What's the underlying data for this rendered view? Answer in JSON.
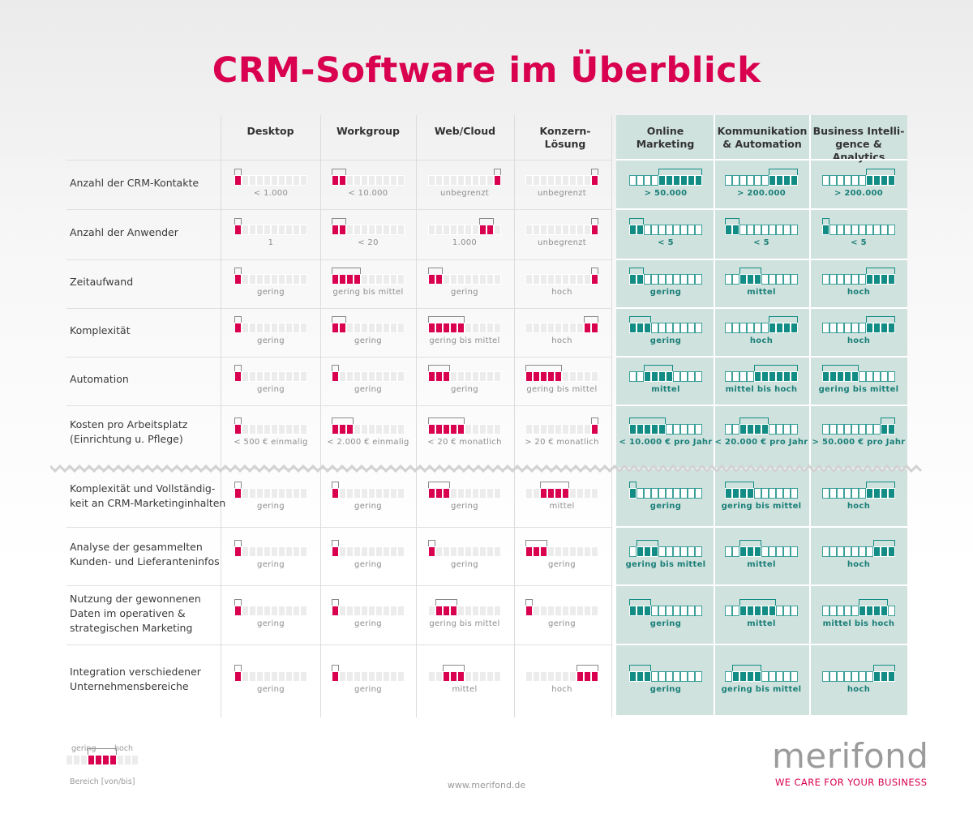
{
  "title": "CRM-Software im Überblick",
  "colors": {
    "pink": "#d8004f",
    "teal": "#128c84"
  },
  "columns": [
    {
      "label": [
        "Desktop"
      ],
      "group": "pink"
    },
    {
      "label": [
        "Workgroup"
      ],
      "group": "pink"
    },
    {
      "label": [
        "Web/Cloud"
      ],
      "group": "pink"
    },
    {
      "label": [
        "Konzern-",
        "Lösung"
      ],
      "group": "pink"
    },
    {
      "label": [
        "Online",
        "Marketing"
      ],
      "group": "teal"
    },
    {
      "label": [
        "Kommunikation",
        "& Automation"
      ],
      "group": "teal"
    },
    {
      "label": [
        "Business Intelli-",
        "gence & Analytics"
      ],
      "group": "teal"
    }
  ],
  "chart_data": {
    "type": "table",
    "scale_segments": 10,
    "rows": [
      {
        "label": [
          "Anzahl der CRM-Kontakte"
        ],
        "cells": [
          {
            "range": [
              1,
              1
            ],
            "caption": "< 1.000"
          },
          {
            "range": [
              1,
              2
            ],
            "caption": "< 10.000"
          },
          {
            "range": [
              10,
              10
            ],
            "caption": "unbegrenzt"
          },
          {
            "range": [
              10,
              10
            ],
            "caption": "unbegrenzt"
          },
          {
            "range": [
              5,
              10
            ],
            "caption": "> 50.000"
          },
          {
            "range": [
              7,
              10
            ],
            "caption": "> 200.000"
          },
          {
            "range": [
              7,
              10
            ],
            "caption": "> 200.000"
          }
        ]
      },
      {
        "label": [
          "Anzahl der Anwender"
        ],
        "cells": [
          {
            "range": [
              1,
              1
            ],
            "caption": "1"
          },
          {
            "range": [
              1,
              2
            ],
            "caption": "< 20"
          },
          {
            "range": [
              8,
              9
            ],
            "caption": "1.000"
          },
          {
            "range": [
              10,
              10
            ],
            "caption": "unbegrenzt"
          },
          {
            "range": [
              1,
              2
            ],
            "caption": "< 5"
          },
          {
            "range": [
              1,
              2
            ],
            "caption": "< 5"
          },
          {
            "range": [
              1,
              1
            ],
            "caption": "< 5"
          }
        ]
      },
      {
        "label": [
          "Zeitaufwand"
        ],
        "cells": [
          {
            "range": [
              1,
              1
            ],
            "caption": "gering"
          },
          {
            "range": [
              1,
              4
            ],
            "caption": "gering bis mittel"
          },
          {
            "range": [
              1,
              2
            ],
            "caption": "gering"
          },
          {
            "range": [
              10,
              10
            ],
            "caption": "hoch"
          },
          {
            "range": [
              1,
              2
            ],
            "caption": "gering"
          },
          {
            "range": [
              3,
              5
            ],
            "caption": "mittel"
          },
          {
            "range": [
              7,
              10
            ],
            "caption": "hoch"
          }
        ]
      },
      {
        "label": [
          "Komplexität"
        ],
        "cells": [
          {
            "range": [
              1,
              1
            ],
            "caption": "gering"
          },
          {
            "range": [
              1,
              2
            ],
            "caption": "gering"
          },
          {
            "range": [
              1,
              5
            ],
            "caption": "gering bis mittel"
          },
          {
            "range": [
              9,
              10
            ],
            "caption": "hoch"
          },
          {
            "range": [
              1,
              3
            ],
            "caption": "gering"
          },
          {
            "range": [
              7,
              10
            ],
            "caption": "hoch"
          },
          {
            "range": [
              7,
              10
            ],
            "caption": "hoch"
          }
        ]
      },
      {
        "label": [
          "Automation"
        ],
        "cells": [
          {
            "range": [
              1,
              1
            ],
            "caption": "gering"
          },
          {
            "range": [
              1,
              1
            ],
            "caption": "gering"
          },
          {
            "range": [
              1,
              3
            ],
            "caption": "gering"
          },
          {
            "range": [
              1,
              5
            ],
            "caption": "gering bis mittel"
          },
          {
            "range": [
              3,
              6
            ],
            "caption": "mittel"
          },
          {
            "range": [
              5,
              10
            ],
            "caption": "mittel bis hoch"
          },
          {
            "range": [
              1,
              5
            ],
            "caption": "gering bis mittel"
          }
        ]
      },
      {
        "label": [
          "Kosten pro Arbeitsplatz",
          "(Einrichtung u. Pflege)"
        ],
        "cells": [
          {
            "range": [
              1,
              1
            ],
            "caption": "< 500 € einmalig"
          },
          {
            "range": [
              1,
              3
            ],
            "caption": "< 2.000 € einmalig"
          },
          {
            "range": [
              1,
              5
            ],
            "caption": "< 20 € monatlich"
          },
          {
            "range": [
              10,
              10
            ],
            "caption": "> 20 € monatlich"
          },
          {
            "range": [
              1,
              5
            ],
            "caption": "< 10.000 € pro Jahr"
          },
          {
            "range": [
              3,
              6
            ],
            "caption": "< 20.000 € pro Jahr"
          },
          {
            "range": [
              9,
              10
            ],
            "caption": "> 50.000 € pro Jahr"
          }
        ]
      },
      {
        "label": [
          "Komplexität und Vollständig-",
          "keit an CRM-Marketinginhalten"
        ],
        "cells": [
          {
            "range": [
              1,
              1
            ],
            "caption": "gering"
          },
          {
            "range": [
              1,
              1
            ],
            "caption": "gering"
          },
          {
            "range": [
              1,
              3
            ],
            "caption": "gering"
          },
          {
            "range": [
              3,
              6
            ],
            "caption": "mittel"
          },
          {
            "range": [
              1,
              1
            ],
            "caption": "gering"
          },
          {
            "range": [
              1,
              4
            ],
            "caption": "gering bis mittel"
          },
          {
            "range": [
              7,
              10
            ],
            "caption": "hoch"
          }
        ]
      },
      {
        "label": [
          "Analyse der gesammelten",
          "Kunden- und Lieferanteninfos"
        ],
        "cells": [
          {
            "range": [
              1,
              1
            ],
            "caption": "gering"
          },
          {
            "range": [
              1,
              1
            ],
            "caption": "gering"
          },
          {
            "range": [
              1,
              1
            ],
            "caption": "gering"
          },
          {
            "range": [
              1,
              3
            ],
            "caption": "gering"
          },
          {
            "range": [
              2,
              4
            ],
            "caption": "gering bis mittel"
          },
          {
            "range": [
              3,
              5
            ],
            "caption": "mittel"
          },
          {
            "range": [
              8,
              10
            ],
            "caption": "hoch"
          }
        ]
      },
      {
        "label": [
          "Nutzung der gewonnenen",
          "Daten im operativen &",
          "strategischen Marketing"
        ],
        "cells": [
          {
            "range": [
              1,
              1
            ],
            "caption": "gering"
          },
          {
            "range": [
              1,
              1
            ],
            "caption": "gering"
          },
          {
            "range": [
              2,
              4
            ],
            "caption": "gering bis mittel"
          },
          {
            "range": [
              1,
              1
            ],
            "caption": "gering"
          },
          {
            "range": [
              1,
              3
            ],
            "caption": "gering"
          },
          {
            "range": [
              3,
              7
            ],
            "caption": "mittel"
          },
          {
            "range": [
              6,
              9
            ],
            "caption": "mittel bis hoch"
          }
        ]
      },
      {
        "label": [
          "Integration verschiedener",
          "Unternehmensbereiche"
        ],
        "cells": [
          {
            "range": [
              1,
              1
            ],
            "caption": "gering"
          },
          {
            "range": [
              1,
              1
            ],
            "caption": "gering"
          },
          {
            "range": [
              3,
              5
            ],
            "caption": "mittel"
          },
          {
            "range": [
              8,
              10
            ],
            "caption": "hoch"
          },
          {
            "range": [
              1,
              3
            ],
            "caption": "gering"
          },
          {
            "range": [
              2,
              5
            ],
            "caption": "gering bis mittel"
          },
          {
            "range": [
              8,
              10
            ],
            "caption": "hoch"
          }
        ]
      }
    ]
  },
  "legend": {
    "low": "gering",
    "high": "hoch",
    "range_label": "Bereich [von/bis]",
    "range": [
      4,
      7
    ]
  },
  "footer": {
    "url": "www.merifond.de",
    "logo": "merifond",
    "tagline": "WE CARE FOR YOUR BUSINESS"
  }
}
